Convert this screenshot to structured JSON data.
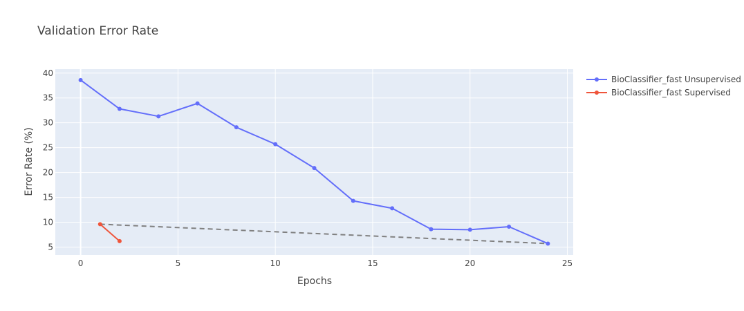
{
  "chart_data": {
    "type": "line",
    "title": "Validation Error Rate",
    "xlabel": "Epochs",
    "ylabel": "Error Rate (%)",
    "xlim": [
      -1.3,
      25.3
    ],
    "ylim": [
      3.4,
      40.8
    ],
    "xticks": [
      0,
      5,
      10,
      15,
      20,
      25
    ],
    "yticks": [
      5,
      10,
      15,
      20,
      25,
      30,
      35,
      40
    ],
    "grid": true,
    "legend_position": "top-right",
    "series": [
      {
        "name": "BioClassifier_fast Unsupervised",
        "color": "#636efa",
        "mode": "lines+markers",
        "x": [
          0,
          2,
          4,
          6,
          8,
          10,
          12,
          14,
          16,
          18,
          20,
          22,
          24
        ],
        "y": [
          38.6,
          32.8,
          31.3,
          33.9,
          29.1,
          25.7,
          20.9,
          14.3,
          12.8,
          8.6,
          8.5,
          9.1,
          5.7
        ]
      },
      {
        "name": "BioClassifier_fast Supervised",
        "color": "#ef553b",
        "mode": "lines+markers",
        "x": [
          1,
          2
        ],
        "y": [
          9.6,
          6.2
        ]
      },
      {
        "color": "#808080",
        "mode": "lines",
        "dash": "dash",
        "x": [
          1,
          24
        ],
        "y": [
          9.6,
          5.7
        ]
      }
    ]
  }
}
